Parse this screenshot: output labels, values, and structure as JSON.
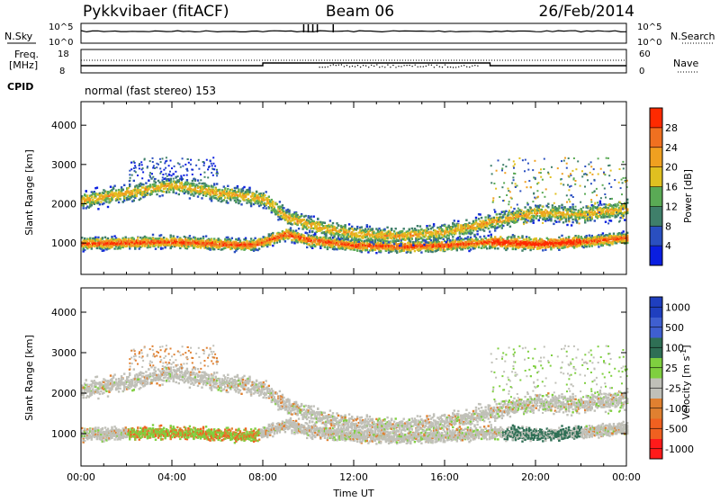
{
  "header": {
    "station": "Pykkvibaer (fitACF)",
    "beam": "Beam 06",
    "date": "26/Feb/2014"
  },
  "panels": {
    "nsky": {
      "label": "N.Sky",
      "ticks": [
        "10^5",
        "10^0"
      ],
      "right_ticks": [
        "10^5",
        "10^0"
      ],
      "right_label": "N.Search"
    },
    "freq": {
      "label_top": "Freq.",
      "label_unit": "[MHz]",
      "ticks": [
        "18",
        "8"
      ],
      "right_ticks": [
        "60",
        "0"
      ],
      "right_label": "Nave"
    },
    "cpid": {
      "label": "CPID",
      "text": "normal (fast stereo) 153"
    }
  },
  "colors": {
    "power_scale": [
      "#0a1ee0",
      "#2a4fc0",
      "#3f7f6a",
      "#5aaa55",
      "#e0c020",
      "#f0a020",
      "#f07020",
      "#ff2a00"
    ],
    "velocity_scale": [
      "#1f3fbf",
      "#3f5fd0",
      "#2f6f55",
      "#7fcf3f",
      "#c0c0b8",
      "#e08030",
      "#f06020",
      "#ff1a1a"
    ]
  },
  "chart_data": [
    {
      "type": "heatmap",
      "title": "",
      "xlabel": "",
      "ylabel": "Slant Range [km]",
      "ylim": [
        200,
        4600
      ],
      "xlim": [
        0,
        24
      ],
      "y_ticks": [
        1000,
        2000,
        3000,
        4000
      ],
      "colorbar": {
        "label": "Power [dB]",
        "ticks": [
          4,
          8,
          12,
          16,
          20,
          24,
          28
        ],
        "range": [
          0,
          32
        ]
      },
      "bands": [
        {
          "name": "",
          "x": [
            0,
            2,
            4,
            6,
            7.5,
            8,
            9,
            10,
            12,
            14,
            16,
            18,
            20,
            22,
            24
          ],
          "y": [
            1000,
            1030,
            1050,
            1000,
            970,
            1050,
            1250,
            1100,
            960,
            930,
            960,
            1050,
            1000,
            1050,
            1150
          ]
        },
        {
          "name": "",
          "x": [
            0,
            2,
            4,
            6,
            8,
            9,
            10,
            12,
            14,
            16,
            18,
            20,
            22,
            24
          ],
          "y": [
            2100,
            2300,
            2500,
            2300,
            2150,
            1700,
            1500,
            1250,
            1200,
            1300,
            1550,
            1800,
            1750,
            1900
          ]
        }
      ]
    },
    {
      "type": "heatmap",
      "title": "",
      "xlabel": "Time UT",
      "ylabel": "Slant Range [km]",
      "ylim": [
        200,
        4600
      ],
      "xlim": [
        0,
        24
      ],
      "y_ticks": [
        1000,
        2000,
        3000,
        4000
      ],
      "x_tick_labels": [
        "00:00",
        "04:00",
        "08:00",
        "12:00",
        "16:00",
        "20:00",
        "00:00"
      ],
      "colorbar": {
        "label": "Velocity [m s-1]",
        "ticks": [
          "1000",
          "500",
          "100",
          "25",
          "-25",
          "-100",
          "-500",
          "-1000"
        ]
      }
    }
  ]
}
